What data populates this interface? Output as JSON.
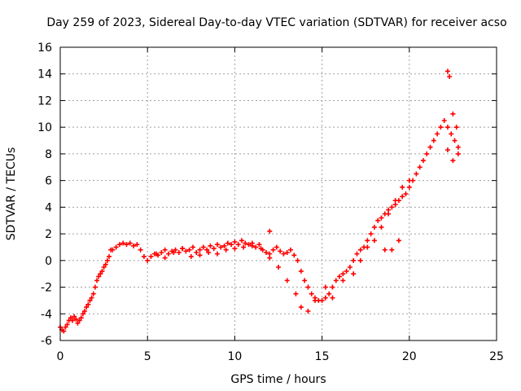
{
  "chart_data": {
    "type": "scatter",
    "title": "Day 259 of 2023, Sidereal Day-to-day VTEC variation (SDTVAR) for receiver acso",
    "xlabel": "GPS time / hours",
    "ylabel": "SDTVAR / TECUs",
    "xlim": [
      0,
      25
    ],
    "ylim": [
      -6,
      16
    ],
    "x_ticks": [
      0,
      5,
      10,
      15,
      20,
      25
    ],
    "y_ticks": [
      -6,
      -4,
      -2,
      0,
      2,
      4,
      6,
      8,
      10,
      12,
      14,
      16
    ],
    "x_tick_labels": [
      "0",
      "5",
      "10",
      "15",
      "20",
      "25"
    ],
    "y_tick_labels": [
      "-6",
      "-4",
      "-2",
      "0",
      "2",
      "4",
      "6",
      "8",
      "10",
      "12",
      "14",
      "16"
    ],
    "grid": true,
    "marker": "+",
    "color": "#ff0000",
    "series": [
      {
        "name": "SDTVAR",
        "x": [
          0.0,
          0.1,
          0.2,
          0.3,
          0.4,
          0.5,
          0.6,
          0.7,
          0.8,
          0.9,
          1.0,
          1.1,
          1.2,
          1.3,
          1.4,
          1.5,
          1.6,
          1.7,
          1.8,
          1.9,
          2.0,
          2.1,
          2.2,
          2.3,
          2.4,
          2.5,
          2.6,
          2.7,
          2.8,
          2.9,
          3.0,
          3.2,
          3.4,
          3.6,
          3.8,
          4.0,
          4.2,
          4.4,
          4.6,
          4.8,
          5.0,
          5.2,
          5.4,
          5.6,
          5.8,
          6.0,
          6.2,
          6.4,
          6.6,
          6.8,
          7.0,
          7.2,
          7.4,
          7.6,
          7.8,
          8.0,
          8.2,
          8.4,
          8.6,
          8.8,
          9.0,
          9.2,
          9.4,
          9.6,
          9.8,
          10.0,
          10.2,
          10.4,
          10.6,
          10.8,
          11.0,
          11.2,
          11.4,
          11.6,
          11.8,
          12.0,
          12.2,
          12.4,
          12.6,
          12.8,
          13.0,
          13.2,
          13.4,
          13.6,
          13.8,
          14.0,
          14.2,
          14.4,
          14.6,
          14.8,
          15.0,
          15.2,
          15.4,
          15.6,
          15.8,
          16.0,
          16.2,
          16.4,
          16.6,
          16.8,
          17.0,
          17.2,
          17.4,
          17.6,
          17.8,
          18.0,
          18.2,
          18.4,
          18.6,
          18.8,
          19.0,
          19.2,
          19.4,
          19.6,
          19.8,
          20.0,
          20.2,
          20.4,
          20.6,
          20.8,
          21.0,
          21.2,
          21.4,
          21.6,
          21.8,
          22.0,
          22.2,
          22.4,
          22.6,
          22.8,
          5.5,
          6.0,
          6.5,
          7.0,
          7.5,
          8.0,
          8.5,
          9.0,
          9.5,
          10.0,
          10.5,
          11.0,
          11.5,
          12.0,
          12.5,
          13.0,
          13.5,
          13.8,
          14.2,
          14.6,
          15.2,
          15.6,
          16.2,
          16.8,
          17.2,
          17.6,
          18.0,
          18.4,
          18.8,
          19.2,
          19.6,
          20.0,
          22.2,
          22.3,
          22.5,
          22.7,
          22.8,
          22.5,
          22.2,
          12.0,
          18.6,
          19.0,
          19.4
        ],
        "y": [
          -5.0,
          -5.2,
          -5.3,
          -5.0,
          -4.8,
          -4.5,
          -4.3,
          -4.5,
          -4.2,
          -4.4,
          -4.7,
          -4.5,
          -4.3,
          -4.0,
          -3.8,
          -3.5,
          -3.3,
          -3.0,
          -2.8,
          -2.5,
          -2.0,
          -1.5,
          -1.2,
          -1.0,
          -0.8,
          -0.5,
          -0.3,
          0.0,
          0.3,
          0.8,
          0.8,
          1.0,
          1.2,
          1.3,
          1.2,
          1.3,
          1.1,
          1.2,
          0.8,
          0.3,
          0.0,
          0.3,
          0.5,
          0.4,
          0.6,
          0.8,
          0.5,
          0.7,
          0.8,
          0.6,
          0.9,
          0.7,
          0.8,
          1.0,
          0.6,
          0.8,
          1.0,
          0.8,
          1.1,
          0.9,
          1.2,
          1.0,
          1.1,
          1.3,
          1.2,
          1.4,
          1.2,
          1.5,
          1.3,
          1.2,
          1.3,
          1.0,
          1.2,
          0.8,
          0.6,
          0.5,
          0.8,
          1.0,
          0.7,
          0.5,
          0.6,
          0.8,
          0.4,
          0.0,
          -0.8,
          -1.5,
          -2.0,
          -2.5,
          -2.8,
          -3.0,
          -3.0,
          -2.8,
          -2.5,
          -2.0,
          -1.5,
          -1.2,
          -1.0,
          -0.8,
          -0.5,
          0.0,
          0.5,
          0.8,
          1.0,
          1.5,
          2.0,
          2.5,
          3.0,
          3.2,
          3.5,
          3.8,
          4.0,
          4.2,
          4.5,
          4.8,
          5.0,
          5.5,
          6.0,
          6.5,
          7.0,
          7.5,
          8.0,
          8.5,
          9.0,
          9.5,
          10.0,
          10.5,
          10.0,
          9.5,
          9.0,
          8.5,
          0.5,
          0.2,
          0.6,
          0.9,
          0.3,
          0.4,
          0.6,
          0.5,
          0.8,
          0.9,
          1.0,
          1.1,
          0.9,
          0.2,
          -0.5,
          -1.5,
          -2.5,
          -3.5,
          -3.8,
          -3.0,
          -2.0,
          -2.8,
          -1.5,
          -1.0,
          0.0,
          1.0,
          1.5,
          2.5,
          3.5,
          4.5,
          5.5,
          6.0,
          14.2,
          13.8,
          11.0,
          10.0,
          8.0,
          7.5,
          8.3,
          2.2,
          0.8,
          0.8,
          1.5
        ]
      }
    ]
  }
}
